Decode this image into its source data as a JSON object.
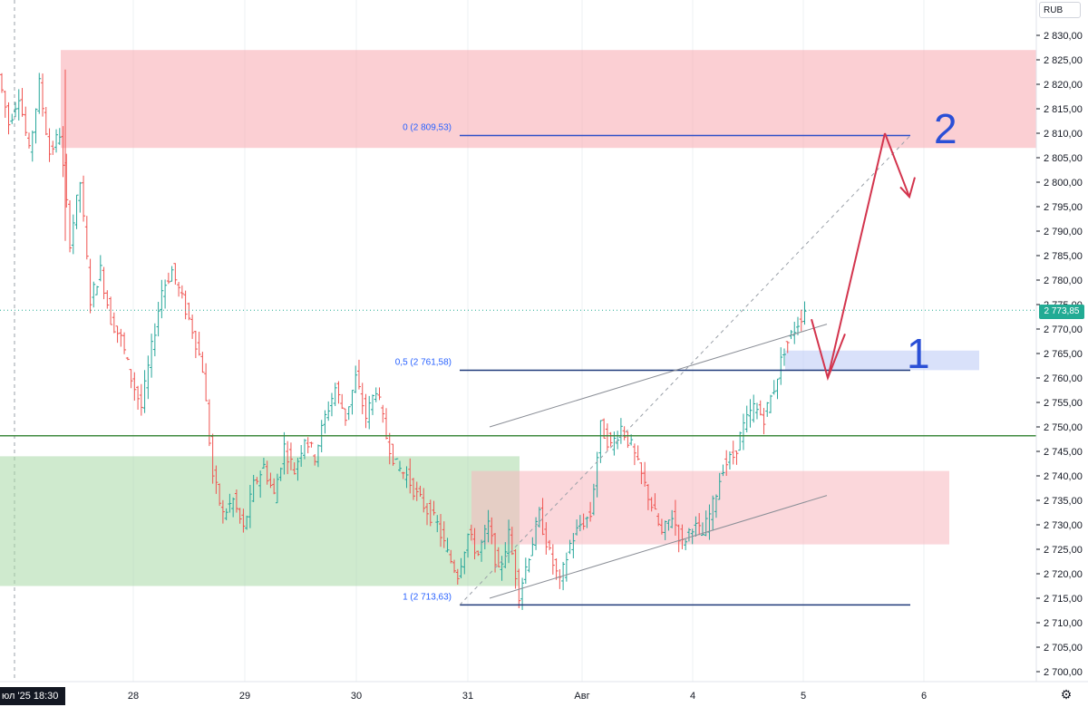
{
  "currency": "RUB",
  "current_price": "2 773,85",
  "crosshair_date": "юл '25   18:30",
  "settings_icon": "gear-icon",
  "colors": {
    "up": "#26a69a",
    "down": "#ef5350",
    "resistance_zone": "#f7a8ae",
    "support_zone": "#a7d9a5",
    "demand_zone": "#f7b7bd",
    "entry_zone": "#b9c8f5",
    "fib_line": "#2e50c8",
    "horizontal_level": "#3f8a3f",
    "arrow": "#d3344d",
    "current_price": "#22ab94"
  },
  "chart_data": {
    "type": "candlestick",
    "x_labels": [
      "28",
      "29",
      "30",
      "31",
      "Авг",
      "4",
      "5",
      "6"
    ],
    "y_ticks": [
      "2 700,00",
      "2 705,00",
      "2 710,00",
      "2 715,00",
      "2 720,00",
      "2 725,00",
      "2 730,00",
      "2 735,00",
      "2 740,00",
      "2 745,00",
      "2 750,00",
      "2 755,00",
      "2 760,00",
      "2 765,00",
      "2 770,00",
      "2 775,00",
      "2 780,00",
      "2 785,00",
      "2 790,00",
      "2 795,00",
      "2 800,00",
      "2 805,00",
      "2 810,00",
      "2 815,00",
      "2 820,00",
      "2 825,00",
      "2 830,00"
    ],
    "ylim": [
      2697,
      2834
    ],
    "fib_levels": [
      {
        "label": "0 (2 809,53)",
        "value": 2809.53
      },
      {
        "label": "0,5 (2 761,58)",
        "value": 2761.58
      },
      {
        "label": "1 (2 713,63)",
        "value": 2713.63
      }
    ],
    "horizontal_level": 2748.2,
    "zones": [
      {
        "name": "resistance",
        "from": 2807,
        "to": 2827
      },
      {
        "name": "support",
        "from": 2717.5,
        "to": 2744
      },
      {
        "name": "demand",
        "from": 2726,
        "to": 2741
      },
      {
        "name": "entry",
        "from": 2761.6,
        "to": 2765.6
      }
    ],
    "annotations": [
      "1",
      "2"
    ],
    "path_points": [
      [
        2822,
        2812
      ],
      [
        2812,
        2818
      ],
      [
        2818,
        2806
      ],
      [
        2806,
        2820
      ],
      [
        2820,
        2806
      ],
      [
        2806,
        2810
      ],
      [
        2810,
        2788
      ],
      [
        2788,
        2800
      ],
      [
        2800,
        2776
      ],
      [
        2776,
        2782
      ],
      [
        2782,
        2772
      ],
      [
        2772,
        2768
      ],
      [
        2768,
        2760
      ],
      [
        2760,
        2754
      ],
      [
        2754,
        2766
      ],
      [
        2766,
        2778
      ],
      [
        2778,
        2782
      ],
      [
        2782,
        2776
      ],
      [
        2776,
        2770
      ],
      [
        2770,
        2762
      ],
      [
        2762,
        2740
      ],
      [
        2740,
        2732
      ],
      [
        2732,
        2735
      ],
      [
        2735,
        2729
      ],
      [
        2729,
        2738
      ],
      [
        2738,
        2742
      ],
      [
        2742,
        2736
      ],
      [
        2736,
        2746
      ],
      [
        2746,
        2741
      ],
      [
        2741,
        2748
      ],
      [
        2748,
        2744
      ],
      [
        2744,
        2752
      ],
      [
        2752,
        2758
      ],
      [
        2758,
        2752
      ],
      [
        2752,
        2760
      ],
      [
        2760,
        2752
      ],
      [
        2752,
        2758
      ],
      [
        2758,
        2748
      ],
      [
        2748,
        2742
      ],
      [
        2742,
        2740
      ],
      [
        2740,
        2736
      ],
      [
        2736,
        2733
      ],
      [
        2733,
        2730
      ],
      [
        2730,
        2724
      ],
      [
        2724,
        2720
      ],
      [
        2720,
        2728
      ],
      [
        2728,
        2724
      ],
      [
        2724,
        2730
      ],
      [
        2730,
        2720
      ],
      [
        2720,
        2728
      ],
      [
        2728,
        2716
      ],
      [
        2716,
        2724
      ],
      [
        2724,
        2732
      ],
      [
        2732,
        2724
      ],
      [
        2724,
        2718
      ],
      [
        2718,
        2726
      ],
      [
        2726,
        2730
      ],
      [
        2730,
        2732
      ],
      [
        2732,
        2750
      ],
      [
        2750,
        2746
      ],
      [
        2746,
        2750
      ],
      [
        2750,
        2746
      ],
      [
        2746,
        2740
      ],
      [
        2740,
        2734
      ],
      [
        2734,
        2728
      ],
      [
        2728,
        2732
      ],
      [
        2732,
        2726
      ],
      [
        2726,
        2730
      ],
      [
        2730,
        2728
      ],
      [
        2728,
        2734
      ],
      [
        2734,
        2742
      ],
      [
        2742,
        2744
      ],
      [
        2744,
        2750
      ],
      [
        2750,
        2754
      ],
      [
        2754,
        2752
      ],
      [
        2752,
        2758
      ],
      [
        2758,
        2766
      ],
      [
        2766,
        2770
      ],
      [
        2770,
        2774
      ]
    ]
  }
}
